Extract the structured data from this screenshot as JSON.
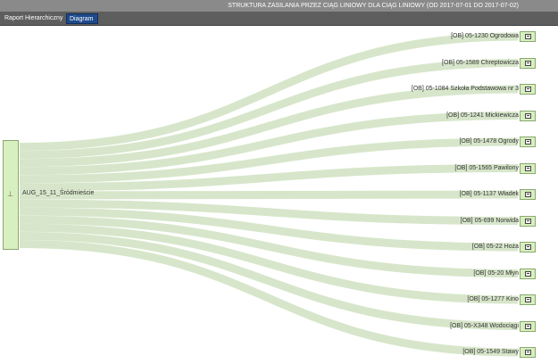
{
  "header": {
    "title": "STRUKTURA ZASILANIA PRZEZ CIĄG LINIOWY DLA CIĄG LINIOWY (OD 2017-07-01 DO 2017-07-02)"
  },
  "tabs": [
    {
      "label": "Raport Hierarchiczny",
      "active": false
    },
    {
      "label": "Diagram",
      "active": true
    }
  ],
  "diagram": {
    "root": {
      "label": "AUG_15_11_Śródmieście",
      "icon": "building-icon"
    },
    "link_color": "#d3e3c4",
    "node_color": "#d8efbf",
    "targets": [
      "[OB] 05-1230 Ogrodowa",
      "[OB] 05-1589 Chreptowicza",
      "[OB] 05-1084 Szkoła Podstawowa nr 3",
      "[OB] 05-1241 Mickiewicza",
      "[OB] 05-1478 Ogrody",
      "[OB] 05-1565 Pawilony",
      "[OB] 05-1137 Władek",
      "[OB] 05-699 Norwida",
      "[OB] 05-22 Hoża",
      "[OB] 05-20 Młyn",
      "[OB] 05-1277 Kino",
      "[OB] 05-X348 Wodociągi",
      "[OB] 05-1549 Stawy"
    ]
  }
}
